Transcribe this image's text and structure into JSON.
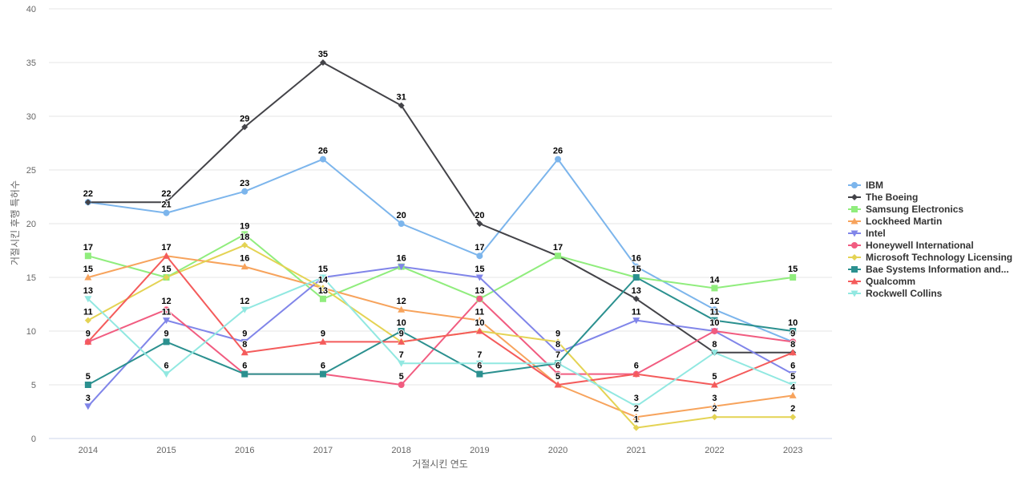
{
  "chart_data": {
    "type": "line",
    "title": "",
    "xlabel": "거절시킨 연도",
    "ylabel": "거절시킨 후행 특허수",
    "ylim": [
      0,
      40
    ],
    "y_ticks": [
      0,
      5,
      10,
      15,
      20,
      25,
      30,
      35,
      40
    ],
    "grid": true,
    "legend_position": "right",
    "categories": [
      "2014",
      "2015",
      "2016",
      "2017",
      "2018",
      "2019",
      "2020",
      "2021",
      "2022",
      "2023"
    ],
    "series": [
      {
        "name": "IBM",
        "color": "#7cb5ec",
        "marker": "circle",
        "values": [
          22,
          21,
          23,
          26,
          20,
          17,
          26,
          16,
          12,
          9
        ]
      },
      {
        "name": "The Boeing",
        "color": "#434348",
        "marker": "diamond",
        "values": [
          22,
          22,
          29,
          35,
          31,
          20,
          17,
          13,
          8,
          8
        ]
      },
      {
        "name": "Samsung Electronics",
        "color": "#90ed7d",
        "marker": "square",
        "values": [
          17,
          15,
          19,
          13,
          16,
          13,
          17,
          15,
          14,
          15
        ]
      },
      {
        "name": "Lockheed Martin",
        "color": "#f7a35c",
        "marker": "triangle",
        "values": [
          15,
          17,
          16,
          14,
          12,
          11,
          5,
          2,
          3,
          4
        ]
      },
      {
        "name": "Intel",
        "color": "#8085e9",
        "marker": "triangle-down",
        "values": [
          3,
          11,
          9,
          15,
          16,
          15,
          8,
          11,
          10,
          6
        ]
      },
      {
        "name": "Honeywell International",
        "color": "#f15c80",
        "marker": "circle",
        "values": [
          9,
          12,
          6,
          6,
          5,
          13,
          6,
          6,
          10,
          9
        ]
      },
      {
        "name": "Microsoft Technology Licensing",
        "color": "#e4d354",
        "marker": "diamond",
        "values": [
          11,
          15,
          18,
          14,
          9,
          10,
          9,
          1,
          2,
          2
        ]
      },
      {
        "name": "Bae Systems Information and...",
        "color": "#2b908f",
        "marker": "square",
        "values": [
          5,
          9,
          6,
          6,
          10,
          6,
          7,
          15,
          11,
          10
        ]
      },
      {
        "name": "Qualcomm",
        "color": "#f45b5b",
        "marker": "triangle",
        "values": [
          9,
          17,
          8,
          9,
          9,
          10,
          5,
          6,
          5,
          8
        ]
      },
      {
        "name": "Rockwell Collins",
        "color": "#91e8e1",
        "marker": "triangle-down",
        "values": [
          13,
          6,
          12,
          15,
          7,
          7,
          7,
          3,
          8,
          5
        ]
      }
    ]
  }
}
